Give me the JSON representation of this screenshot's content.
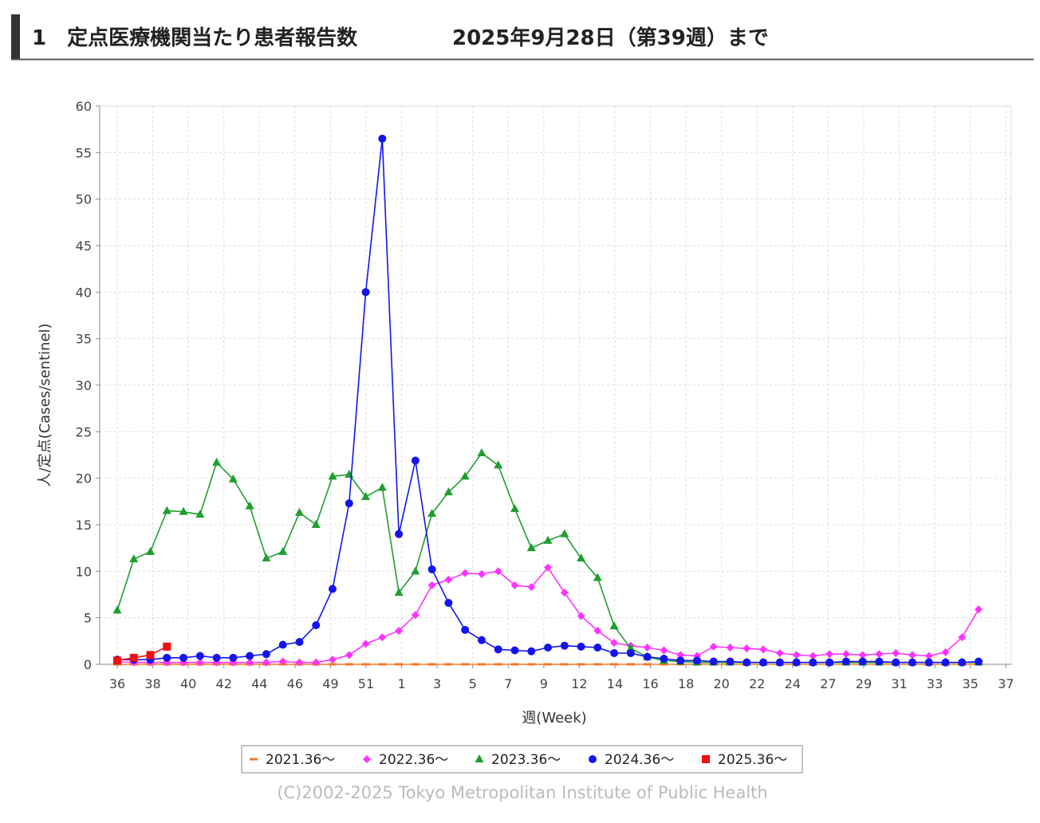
{
  "chart_data": {
    "type": "line",
    "title": "1　定点医療機関当たり患者報告数",
    "subtitle": "2025年9月28日（第39週）まで",
    "x_label": "週(Week)",
    "y_label": "人/定点(Cases/sentinel)",
    "footer": "(C)2002-2025 Tokyo Metropolitan Institute of Public Health",
    "x_labels": [
      "36",
      "38",
      "40",
      "42",
      "44",
      "46",
      "49",
      "51",
      "1",
      "3",
      "5",
      "7",
      "9",
      "12",
      "14",
      "16",
      "18",
      "20",
      "22",
      "24",
      "27",
      "29",
      "31",
      "33",
      "35",
      "37"
    ],
    "ylim": [
      0,
      60
    ],
    "yticks": [
      0,
      5,
      10,
      15,
      20,
      25,
      30,
      35,
      40,
      45,
      50,
      55,
      60
    ],
    "grid": true,
    "legend": "bottom",
    "series": [
      {
        "name": "2021.36～",
        "color": "#f07a2a",
        "marker": "dash",
        "values": [
          0,
          0,
          0,
          0,
          0,
          0,
          0,
          0,
          0,
          0,
          0,
          0,
          0,
          0,
          0,
          0,
          0,
          0,
          0,
          0,
          0,
          0,
          0,
          0,
          0,
          0,
          0,
          0,
          0,
          0,
          0,
          0,
          0,
          0,
          0,
          0,
          0,
          0,
          0,
          0,
          0,
          0,
          0,
          0,
          0,
          0,
          0,
          0,
          0,
          0,
          0,
          0,
          0
        ]
      },
      {
        "name": "2022.36～",
        "color": "#ff33ff",
        "marker": "diamond",
        "values": [
          0.3,
          0.2,
          0.2,
          0.2,
          0.2,
          0.2,
          0.2,
          0.2,
          0.2,
          0.2,
          0.3,
          0.2,
          0.2,
          0.5,
          1.0,
          2.2,
          2.9,
          3.6,
          5.3,
          8.5,
          9.1,
          9.8,
          9.7,
          10.0,
          8.5,
          8.3,
          10.4,
          7.7,
          5.2,
          3.6,
          2.3,
          2.0,
          1.8,
          1.5,
          1.0,
          0.9,
          1.9,
          1.8,
          1.7,
          1.6,
          1.2,
          1.0,
          0.9,
          1.1,
          1.1,
          1.0,
          1.1,
          1.2,
          1.0,
          0.9,
          1.3,
          2.9,
          5.9
        ]
      },
      {
        "name": "2023.36～",
        "color": "#1f9e2e",
        "marker": "triangle",
        "values": [
          5.8,
          11.3,
          12.1,
          16.5,
          16.4,
          16.1,
          21.7,
          19.9,
          17.0,
          11.4,
          12.1,
          16.3,
          15.0,
          20.2,
          20.4,
          18.0,
          19.0,
          7.7,
          10.0,
          16.2,
          18.5,
          20.2,
          22.7,
          21.4,
          16.7,
          12.5,
          13.3,
          14.0,
          11.4,
          9.3,
          4.1,
          1.7,
          0.8,
          0.4,
          0.3,
          0.2,
          0.2,
          0.2,
          0.2,
          0.2,
          0.2,
          0.2,
          0.2,
          0.2,
          0.2,
          0.2,
          0.2,
          0.2,
          0.2,
          0.2,
          0.2,
          0.2,
          0.2
        ]
      },
      {
        "name": "2024.36～",
        "color": "#1414ee",
        "marker": "circle",
        "values": [
          0.5,
          0.5,
          0.5,
          0.7,
          0.7,
          0.9,
          0.7,
          0.7,
          0.9,
          1.1,
          2.1,
          2.4,
          4.2,
          8.1,
          17.3,
          40.0,
          56.5,
          14.0,
          21.9,
          10.2,
          6.6,
          3.7,
          2.6,
          1.6,
          1.5,
          1.4,
          1.8,
          2.0,
          1.9,
          1.8,
          1.2,
          1.2,
          0.8,
          0.6,
          0.4,
          0.4,
          0.3,
          0.3,
          0.2,
          0.2,
          0.2,
          0.2,
          0.2,
          0.2,
          0.3,
          0.3,
          0.3,
          0.2,
          0.2,
          0.2,
          0.2,
          0.2,
          0.3
        ]
      },
      {
        "name": "2025.36～",
        "color": "#ee1111",
        "marker": "square",
        "values": [
          0.4,
          0.7,
          1.0,
          1.9
        ]
      }
    ]
  }
}
